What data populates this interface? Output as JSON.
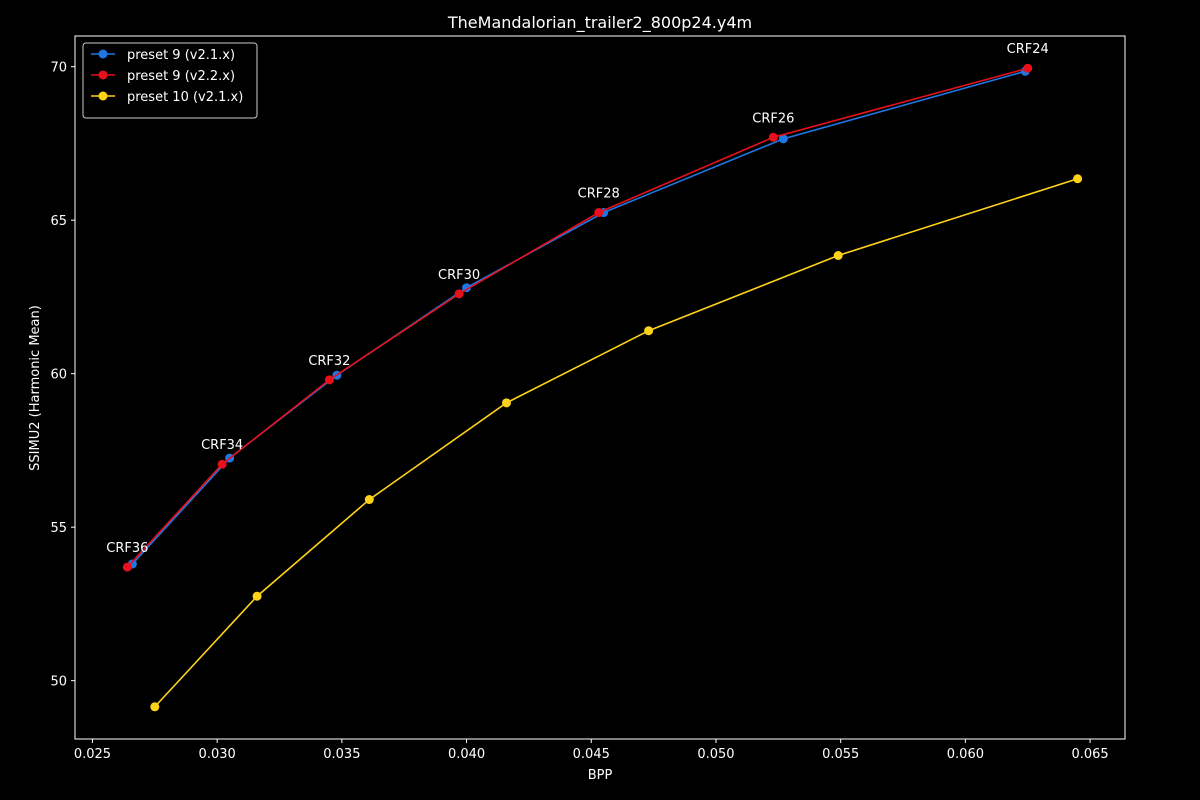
{
  "chart_data": {
    "type": "line",
    "title": "TheMandalorian_trailer2_800p24.y4m",
    "xlabel": "BPP",
    "ylabel": "SSIMU2 (Harmonic Mean)",
    "xlim": [
      0.0243,
      0.0664
    ],
    "ylim": [
      48.1,
      71.0
    ],
    "xticks": [
      0.025,
      0.03,
      0.035,
      0.04,
      0.045,
      0.05,
      0.055,
      0.06,
      0.065
    ],
    "xtick_labels": [
      "0.025",
      "0.030",
      "0.035",
      "0.040",
      "0.045",
      "0.050",
      "0.055",
      "0.060",
      "0.065"
    ],
    "yticks": [
      50,
      55,
      60,
      65,
      70
    ],
    "ytick_labels": [
      "50",
      "55",
      "60",
      "65",
      "70"
    ],
    "grid": false,
    "legend_position": "top-left",
    "background": "#000000",
    "series": [
      {
        "name": "preset 9 (v2.1.x)",
        "color": "#1f77e4",
        "marker": "circle",
        "x": [
          0.0266,
          0.0305,
          0.0348,
          0.04,
          0.0455,
          0.0527,
          0.0624
        ],
        "y": [
          53.8,
          57.25,
          59.95,
          62.8,
          65.25,
          67.65,
          69.85
        ]
      },
      {
        "name": "preset 9 (v2.2.x)",
        "color": "#e8101a",
        "marker": "circle",
        "x": [
          0.0264,
          0.0302,
          0.0345,
          0.0397,
          0.0453,
          0.0523,
          0.0625
        ],
        "y": [
          53.7,
          57.05,
          59.8,
          62.6,
          65.25,
          67.7,
          69.95
        ]
      },
      {
        "name": "preset 10 (v2.1.x)",
        "color": "#ffd21a",
        "marker": "circle",
        "x": [
          0.0275,
          0.0316,
          0.0361,
          0.0416,
          0.0473,
          0.0549,
          0.0645
        ],
        "y": [
          49.15,
          52.75,
          55.9,
          59.05,
          61.4,
          63.85,
          66.35
        ]
      }
    ],
    "annotations": [
      {
        "text": "CRF36",
        "x": 0.0264,
        "y": 53.7
      },
      {
        "text": "CRF34",
        "x": 0.0302,
        "y": 57.05
      },
      {
        "text": "CRF32",
        "x": 0.0345,
        "y": 59.8
      },
      {
        "text": "CRF30",
        "x": 0.0397,
        "y": 62.6
      },
      {
        "text": "CRF28",
        "x": 0.0453,
        "y": 65.25
      },
      {
        "text": "CRF26",
        "x": 0.0523,
        "y": 67.7
      },
      {
        "text": "CRF24",
        "x": 0.0625,
        "y": 69.95
      }
    ]
  }
}
